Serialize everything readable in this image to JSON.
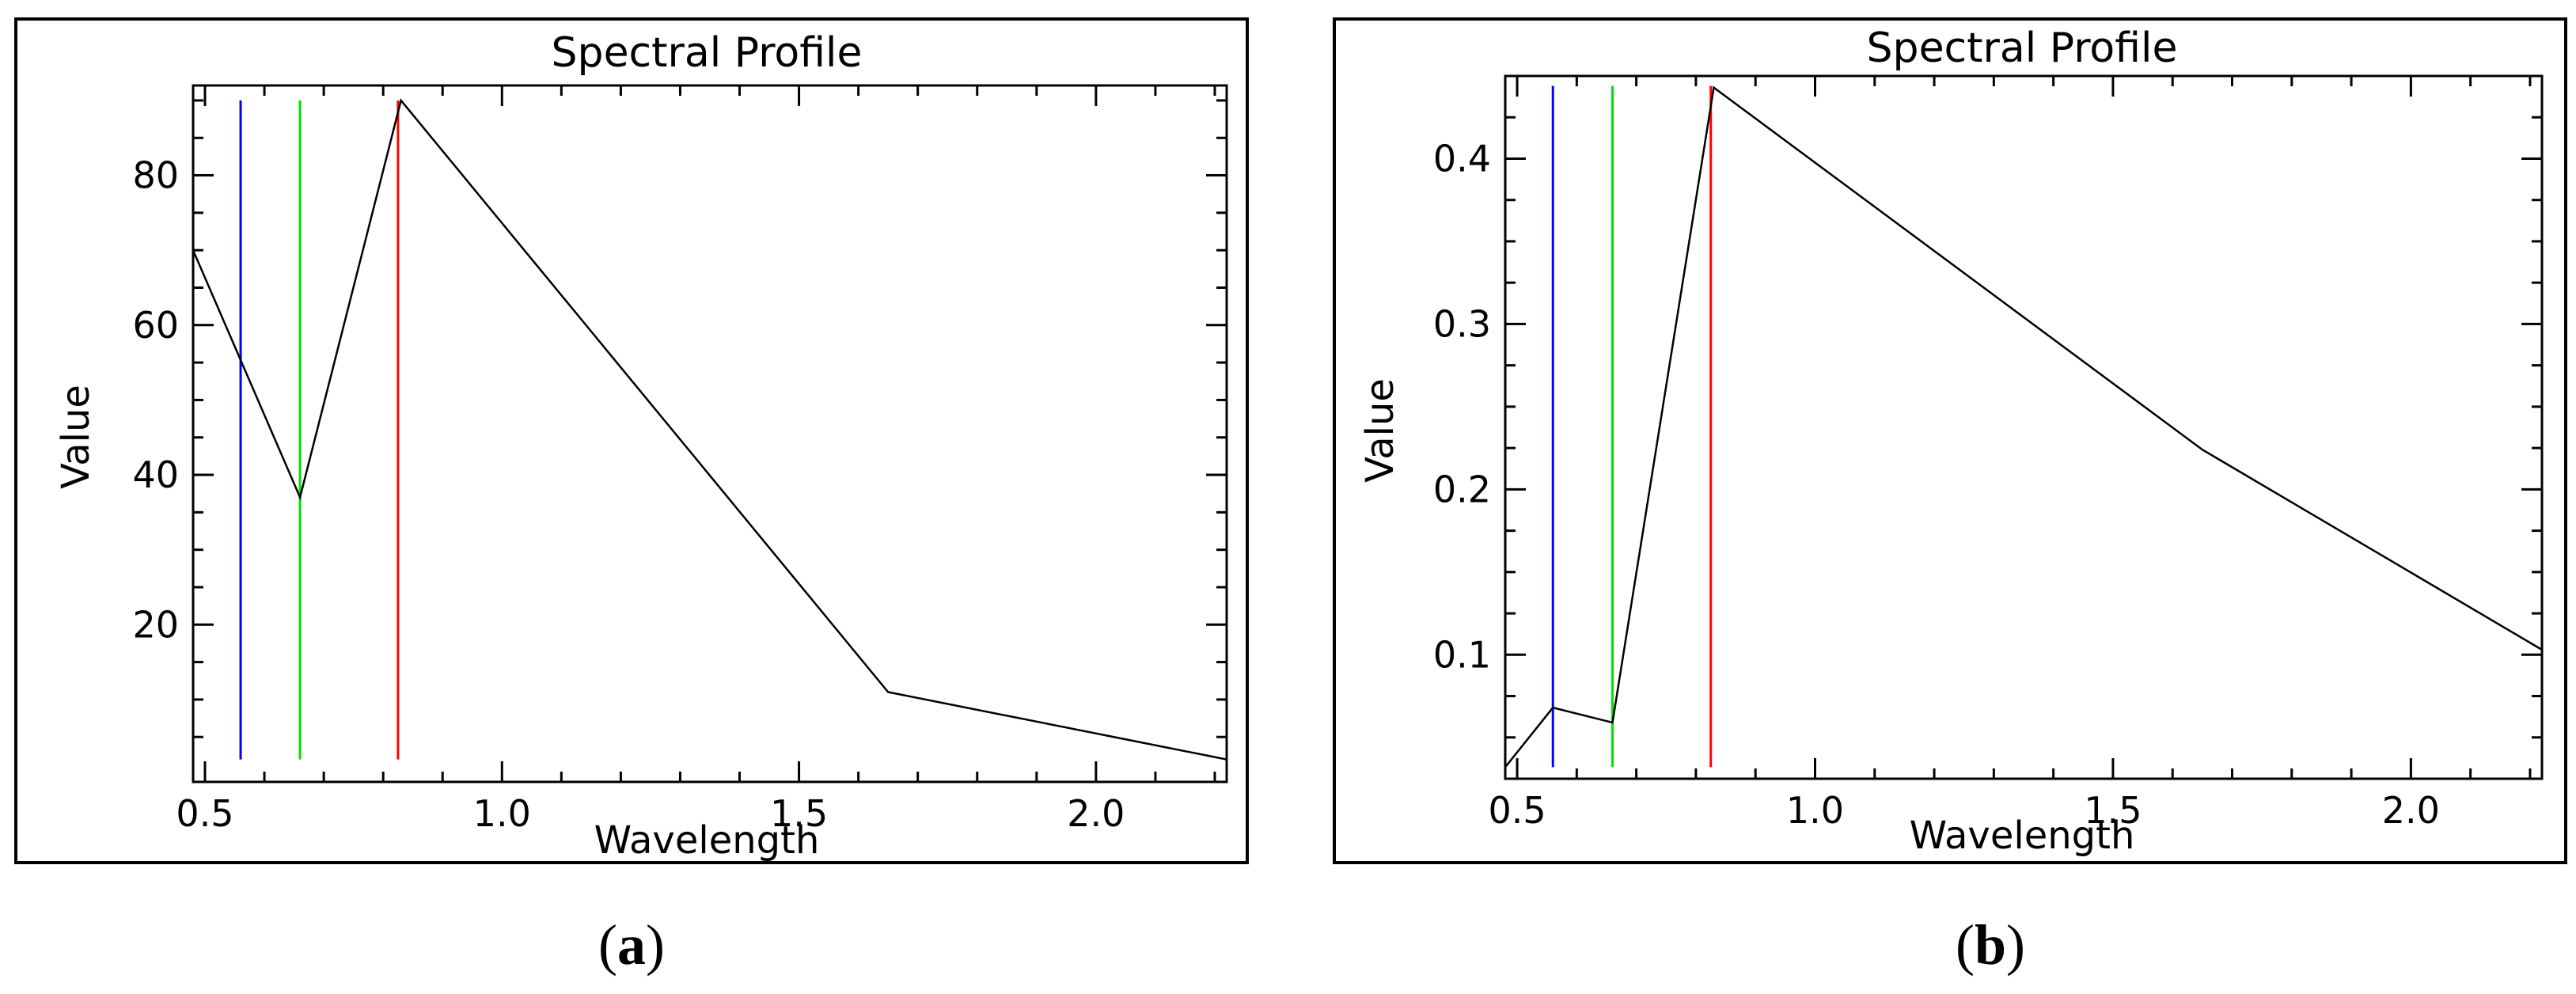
{
  "colors": {
    "profile_line": "#000000",
    "marker_blue": "#0000ff",
    "marker_green": "#00e000",
    "marker_red": "#ff0000",
    "frame": "#000000",
    "background": "#ffffff"
  },
  "chart_data": [
    {
      "type": "line",
      "title": "Spectral Profile",
      "xlabel": "Wavelength",
      "ylabel": "Value",
      "caption_open": "(",
      "caption_letter": "a",
      "caption_close": ")",
      "xlim": [
        0.48,
        2.22
      ],
      "ylim": [
        -1,
        92
      ],
      "xticks": [
        0.5,
        1.0,
        1.5,
        2.0
      ],
      "xtick_labels": [
        "0.5",
        "1.0",
        "1.5",
        "2.0"
      ],
      "yticks": [
        20,
        40,
        60,
        80
      ],
      "ytick_labels": [
        "20",
        "40",
        "60",
        "80"
      ],
      "series": [
        {
          "x": [
            0.48,
            0.66,
            0.83,
            1.65,
            2.22
          ],
          "y": [
            70,
            37,
            90,
            11,
            2
          ]
        }
      ],
      "markers": [
        {
          "x": 0.56,
          "y_top": 90,
          "y_bottom": 2,
          "color": "#0000ff"
        },
        {
          "x": 0.66,
          "y_top": 90,
          "y_bottom": 2,
          "color": "#00e000"
        },
        {
          "x": 0.825,
          "y_top": 90,
          "y_bottom": 2,
          "color": "#ff0000"
        }
      ],
      "grid": false
    },
    {
      "type": "line",
      "title": "Spectral Profile",
      "xlabel": "Wavelength",
      "ylabel": "Value",
      "caption_open": "(",
      "caption_letter": "b",
      "caption_close": ")",
      "xlim": [
        0.48,
        2.22
      ],
      "ylim": [
        0.025,
        0.45
      ],
      "xticks": [
        0.5,
        1.0,
        1.5,
        2.0
      ],
      "xtick_labels": [
        "0.5",
        "1.0",
        "1.5",
        "2.0"
      ],
      "yticks": [
        0.1,
        0.2,
        0.3,
        0.4
      ],
      "ytick_labels": [
        "0.1",
        "0.2",
        "0.3",
        "0.4"
      ],
      "series": [
        {
          "x": [
            0.48,
            0.56,
            0.66,
            0.83,
            1.65,
            2.22
          ],
          "y": [
            0.032,
            0.068,
            0.059,
            0.443,
            0.224,
            0.103
          ]
        }
      ],
      "markers": [
        {
          "x": 0.56,
          "y_top": 0.444,
          "y_bottom": 0.032,
          "color": "#0000ff"
        },
        {
          "x": 0.66,
          "y_top": 0.444,
          "y_bottom": 0.032,
          "color": "#00e000"
        },
        {
          "x": 0.825,
          "y_top": 0.444,
          "y_bottom": 0.032,
          "color": "#ff0000"
        }
      ],
      "grid": false
    }
  ]
}
